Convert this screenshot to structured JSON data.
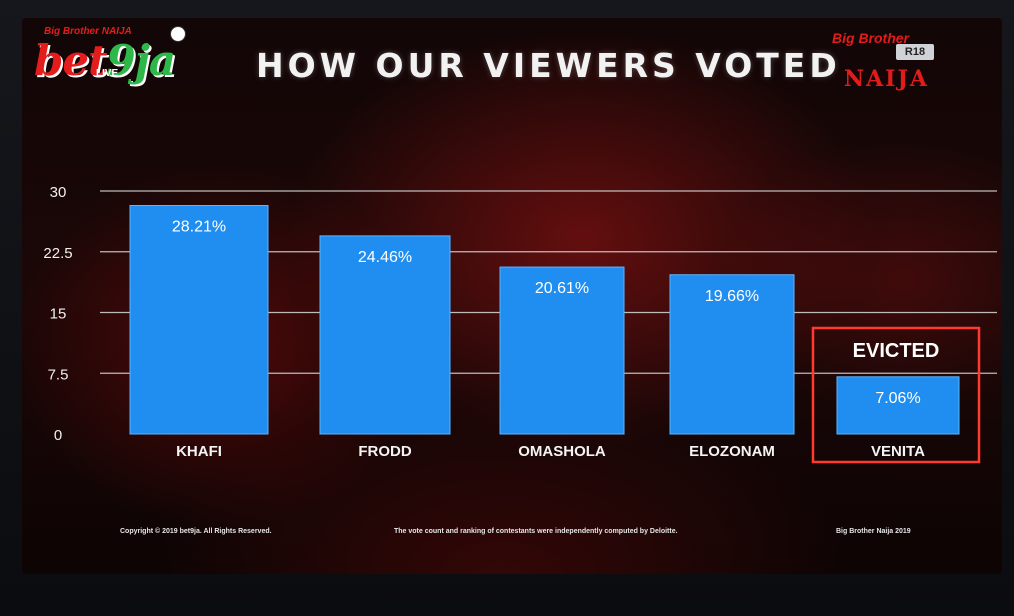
{
  "title": "HOW OUR VIEWERS VOTED",
  "logo_left": {
    "small": "Big Brother NAIJA",
    "bet": "bet",
    "nine": "9ja",
    "live": "LIVE"
  },
  "logo_right": {
    "brand": "Big Brother",
    "naija": "NAIJA",
    "r18": "R18"
  },
  "footer": {
    "copyright": "Copyright © 2019 bet9ja. All Rights Reserved.",
    "note": "The vote count and ranking of contestants were independently computed by Deloitte.",
    "show": "Big Brother Naija 2019"
  },
  "colors": {
    "bar": "#1f8ef0",
    "gridline": "#cfcfcf",
    "evicted_box": "#ff3b30"
  },
  "chart_data": {
    "type": "bar",
    "categories": [
      "KHAFI",
      "FRODD",
      "OMASHOLA",
      "ELOZONAM",
      "VENITA"
    ],
    "values": [
      28.21,
      24.46,
      20.61,
      19.66,
      7.06
    ],
    "data_labels": [
      "28.21%",
      "24.46%",
      "20.61%",
      "19.66%",
      "7.06%"
    ],
    "yticks": [
      "0",
      "7.5",
      "15",
      "22.5",
      "30"
    ],
    "ylim": [
      0,
      30
    ],
    "grid": true,
    "highlight": {
      "category": "VENITA",
      "label": "EVICTED"
    }
  }
}
